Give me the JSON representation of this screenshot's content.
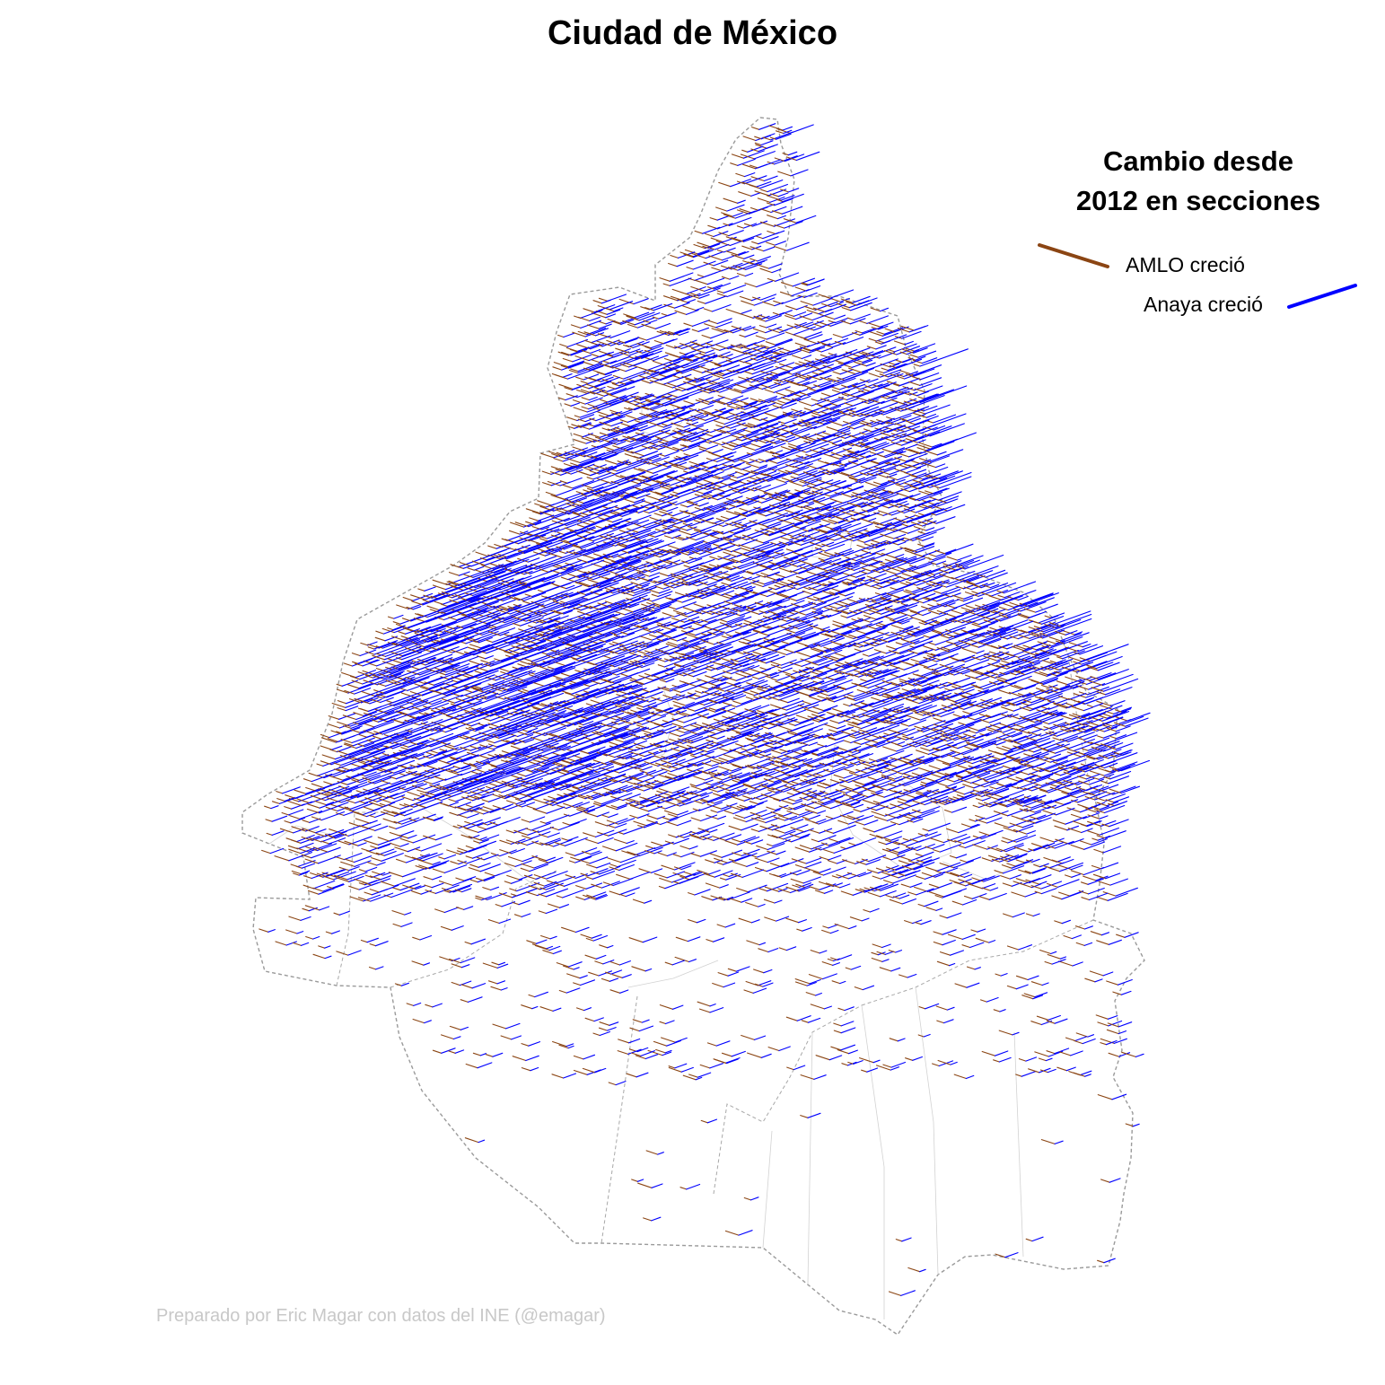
{
  "title": "Ciudad de México",
  "legend": {
    "title_line1": "Cambio desde",
    "title_line2": "2012 en secciones",
    "items": [
      {
        "label": "AMLO creció",
        "color": "#8B4513"
      },
      {
        "label": "Anaya creció",
        "color": "#0000FF"
      }
    ]
  },
  "credit": "Preparado por Eric Magar con datos del INE (@emagar)",
  "colors": {
    "amlo": "#8B4513",
    "anaya": "#0000FF",
    "boundary": "#9a9a9a",
    "section": "#cfcfcf"
  },
  "chart_data": {
    "type": "vector-map",
    "title": "Ciudad de México",
    "series": [
      {
        "name": "AMLO creció",
        "color": "#8B4513"
      },
      {
        "name": "Anaya creció",
        "color": "#0000FF"
      }
    ],
    "note": "Each electoral section shows an arrow whose direction/length reflects vote change since 2012; thousands of sections, dense in the north-central area."
  }
}
